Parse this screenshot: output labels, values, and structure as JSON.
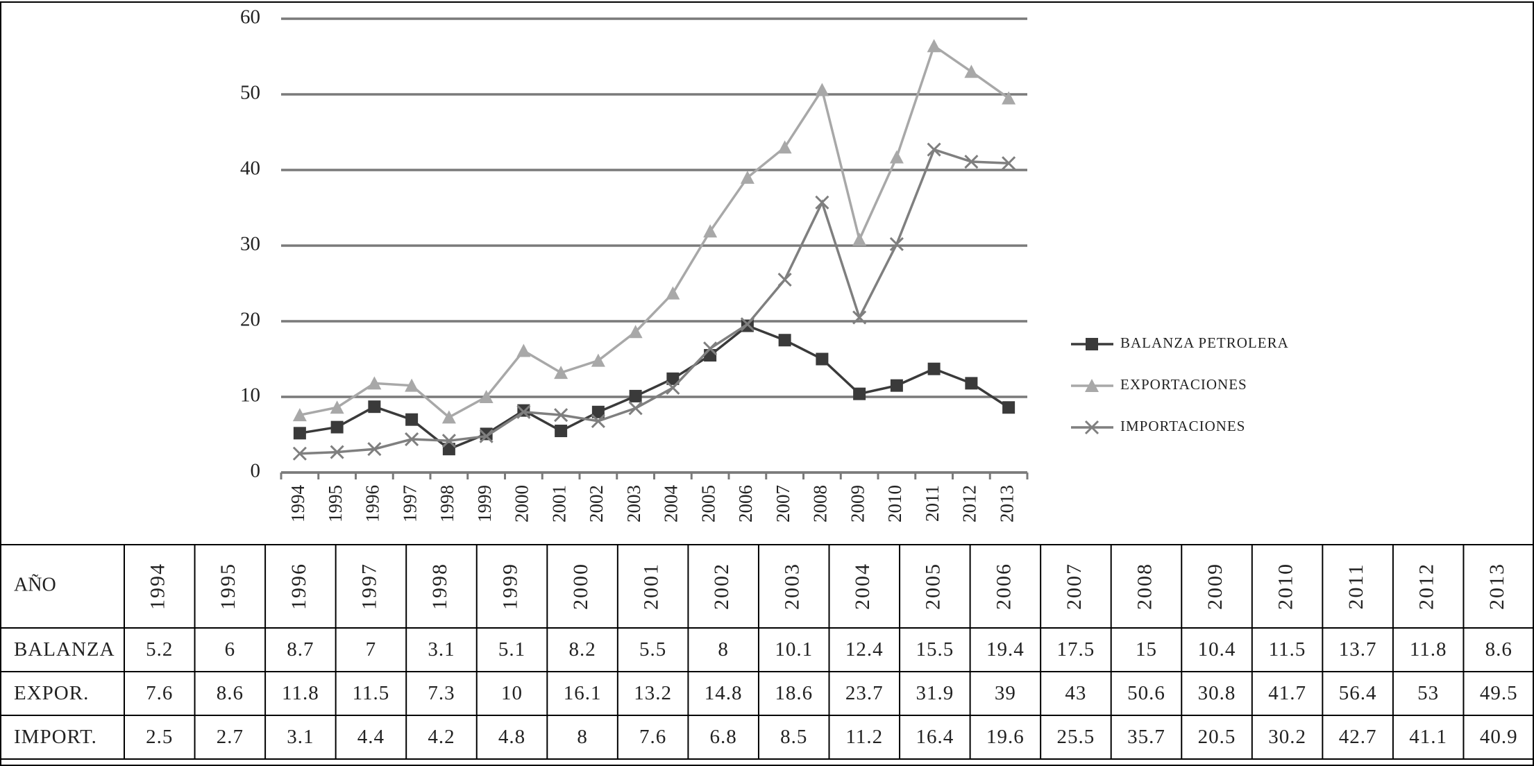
{
  "chart_data": {
    "type": "line",
    "categories": [
      "1994",
      "1995",
      "1996",
      "1997",
      "1998",
      "1999",
      "2000",
      "2001",
      "2002",
      "2003",
      "2004",
      "2005",
      "2006",
      "2007",
      "2008",
      "2009",
      "2010",
      "2011",
      "2012",
      "2013"
    ],
    "series": [
      {
        "name": "BALANZA PETROLERA",
        "color": "#3a3a3a",
        "marker": "square",
        "values": [
          5.2,
          6,
          8.7,
          7,
          3.1,
          5.1,
          8.2,
          5.5,
          8,
          10.1,
          12.4,
          15.5,
          19.4,
          17.5,
          15,
          10.4,
          11.5,
          13.7,
          11.8,
          8.6
        ]
      },
      {
        "name": "EXPORTACIONES",
        "color": "#a8a8a8",
        "marker": "triangle",
        "values": [
          7.6,
          8.6,
          11.8,
          11.5,
          7.3,
          10,
          16.1,
          13.2,
          14.8,
          18.6,
          23.7,
          31.9,
          39,
          43,
          50.6,
          30.8,
          41.7,
          56.4,
          53,
          49.5
        ]
      },
      {
        "name": "IMPORTACIONES",
        "color": "#7f7f7f",
        "marker": "x",
        "values": [
          2.5,
          2.7,
          3.1,
          4.4,
          4.2,
          4.8,
          8,
          7.6,
          6.8,
          8.5,
          11.2,
          16.4,
          19.6,
          25.5,
          35.7,
          20.5,
          30.2,
          42.7,
          41.1,
          40.9
        ]
      }
    ],
    "ylim": [
      0,
      60
    ],
    "yticks": [
      0,
      10,
      20,
      30,
      40,
      50,
      60
    ],
    "grid": true,
    "legend": "right"
  },
  "table": {
    "header": [
      "AÑO",
      "1994",
      "1995",
      "1996",
      "1997",
      "1998",
      "1999",
      "2000",
      "2001",
      "2002",
      "2003",
      "2004",
      "2005",
      "2006",
      "2007",
      "2008",
      "2009",
      "2010",
      "2011",
      "2012",
      "2013"
    ],
    "rows": [
      [
        "BALANZA",
        5.2,
        6,
        8.7,
        7,
        3.1,
        5.1,
        8.2,
        5.5,
        8,
        10.1,
        12.4,
        15.5,
        19.4,
        17.5,
        15,
        10.4,
        11.5,
        13.7,
        11.8,
        8.6
      ],
      [
        "EXPOR.",
        7.6,
        8.6,
        11.8,
        11.5,
        7.3,
        10,
        16.1,
        13.2,
        14.8,
        18.6,
        23.7,
        31.9,
        39,
        43,
        50.6,
        30.8,
        41.7,
        56.4,
        53,
        49.5
      ],
      [
        "IMPORT.",
        2.5,
        2.7,
        3.1,
        4.4,
        4.2,
        4.8,
        8,
        7.6,
        6.8,
        8.5,
        11.2,
        16.4,
        19.6,
        25.5,
        35.7,
        20.5,
        30.2,
        42.7,
        41.1,
        40.9
      ]
    ]
  }
}
